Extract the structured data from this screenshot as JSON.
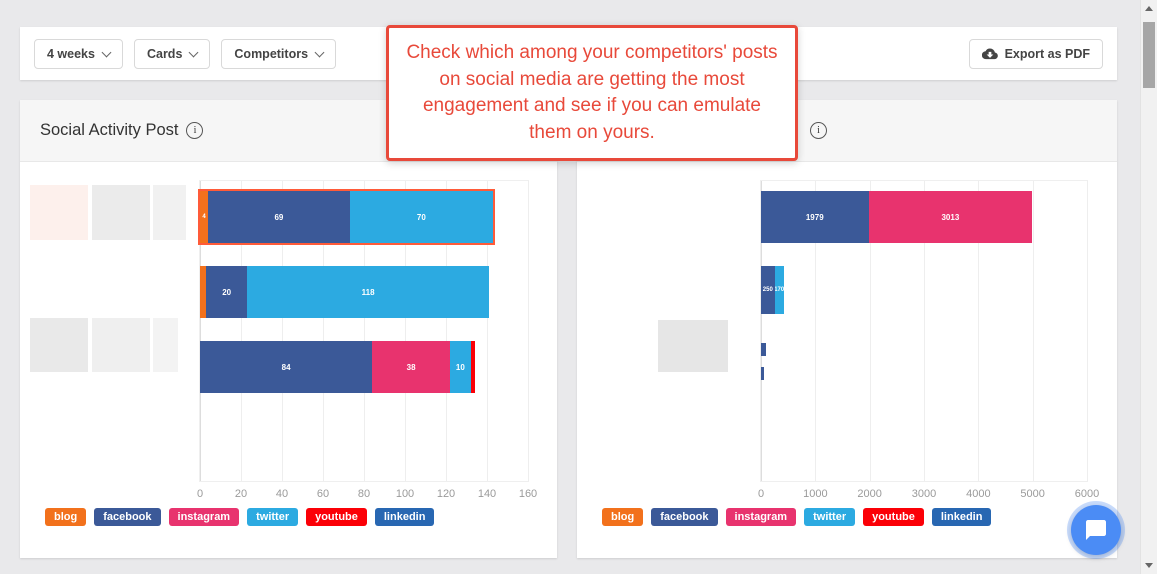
{
  "toolbar": {
    "filters": [
      {
        "label": "4 weeks"
      },
      {
        "label": "Cards"
      },
      {
        "label": "Competitors"
      }
    ],
    "export_label": "Export as PDF"
  },
  "tooltip": {
    "text": "Check which among your competitors' posts on social media are getting the most engagement and see if you can emulate them on yours."
  },
  "cards": [
    {
      "title": "Social Activity Post"
    },
    {
      "title": ""
    }
  ],
  "legend": {
    "items": [
      {
        "id": "blog",
        "label": "blog",
        "color": "#f2711c"
      },
      {
        "id": "facebook",
        "label": "facebook",
        "color": "#3b5998"
      },
      {
        "id": "instagram",
        "label": "instagram",
        "color": "#e8336e"
      },
      {
        "id": "twitter",
        "label": "twitter",
        "color": "#2caae1"
      },
      {
        "id": "youtube",
        "label": "youtube",
        "color": "#fb0007"
      },
      {
        "id": "linkedin",
        "label": "linkedin",
        "color": "#2867b2"
      }
    ]
  },
  "chart_data": [
    {
      "type": "bar",
      "orientation": "horizontal",
      "title": "Social Activity Post",
      "x_min": 0,
      "x_max": 160,
      "x_ticks": [
        0,
        20,
        40,
        60,
        80,
        100,
        120,
        140,
        160
      ],
      "grid": true,
      "legend_position": "bottom",
      "y_labels_redacted": true,
      "rows": [
        {
          "highlighted": true,
          "segments": [
            {
              "series": "blog",
              "value": 4
            },
            {
              "series": "facebook",
              "value": 69
            },
            {
              "series": "twitter",
              "value": 70
            }
          ]
        },
        {
          "segments": [
            {
              "series": "blog",
              "value": 3
            },
            {
              "series": "facebook",
              "value": 20
            },
            {
              "series": "twitter",
              "value": 118
            }
          ]
        },
        {
          "segments": [
            {
              "series": "facebook",
              "value": 84
            },
            {
              "series": "instagram",
              "value": 38
            },
            {
              "series": "twitter",
              "value": 10
            },
            {
              "series": "youtube",
              "value": 2
            }
          ]
        }
      ]
    },
    {
      "type": "bar",
      "orientation": "horizontal",
      "title": "",
      "x_min": 0,
      "x_max": 6000,
      "x_ticks": [
        0,
        1000,
        2000,
        3000,
        4000,
        5000,
        6000
      ],
      "grid": true,
      "legend_position": "bottom",
      "y_labels_redacted": true,
      "rows": [
        {
          "segments": [
            {
              "series": "facebook",
              "value": 1979
            },
            {
              "series": "instagram",
              "value": 3013
            }
          ]
        },
        {
          "segments": [
            {
              "series": "facebook",
              "value": 250
            },
            {
              "series": "twitter",
              "value": 170
            }
          ]
        },
        {
          "segments": [
            {
              "series": "facebook",
              "value": 90
            }
          ]
        },
        {
          "segments": [
            {
              "series": "facebook",
              "value": 60
            }
          ]
        }
      ]
    }
  ]
}
